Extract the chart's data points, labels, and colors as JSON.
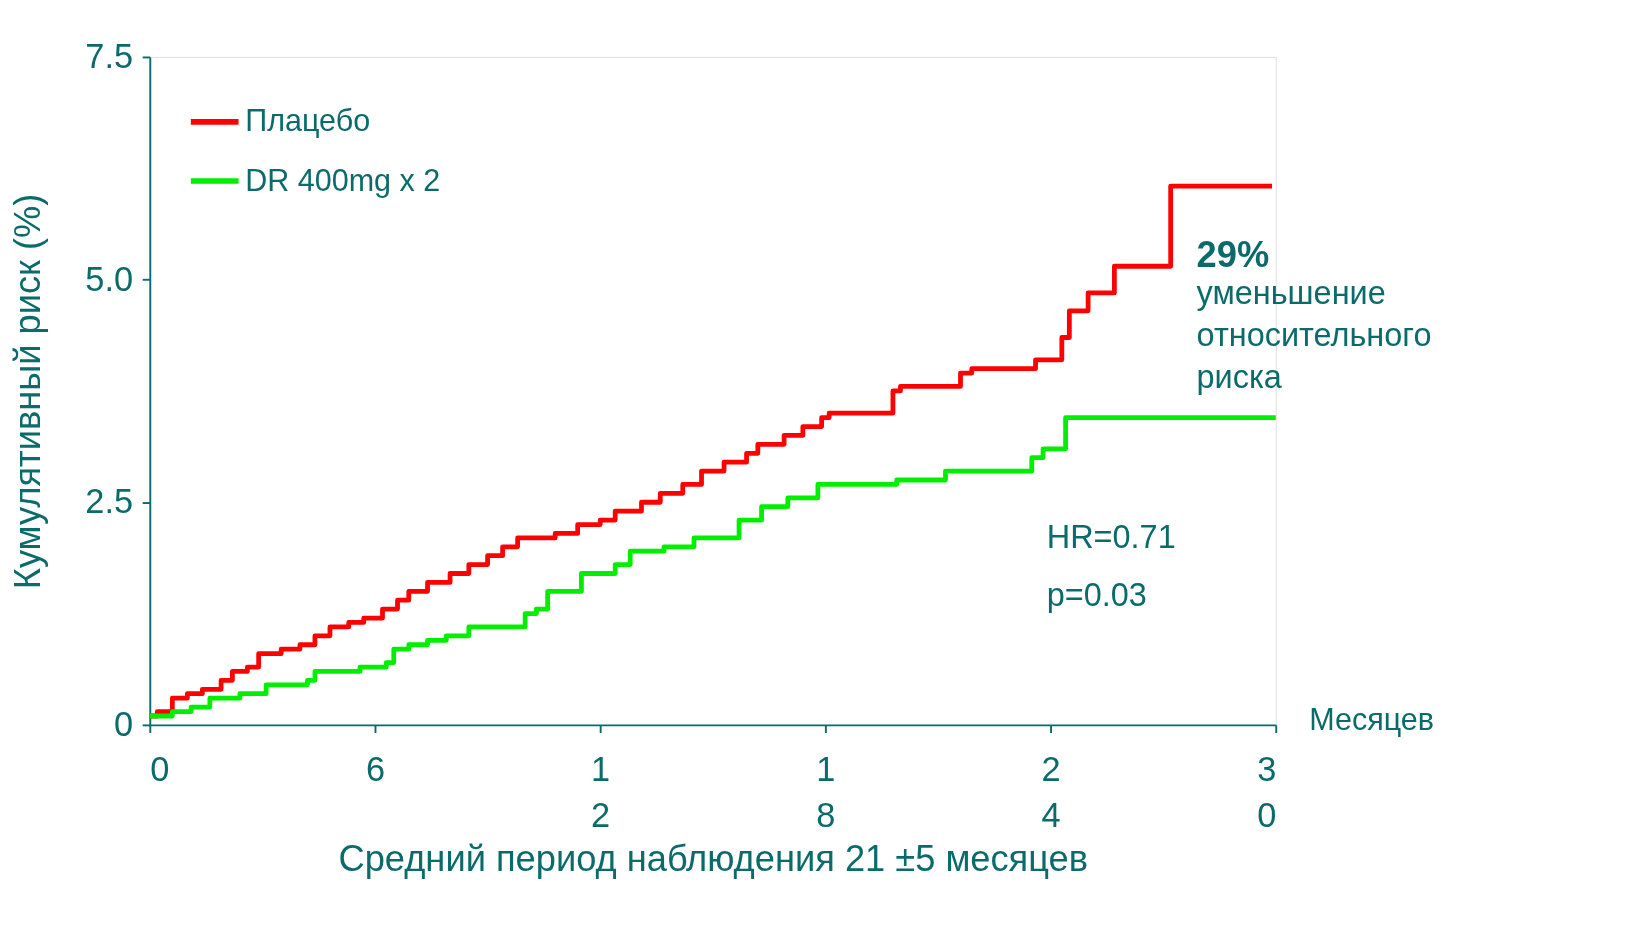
{
  "chart_data": {
    "type": "step",
    "xlabel": "Средний период наблюдения 21 ±5 месяцев",
    "ylabel": "Кумулятивный риск (%)",
    "xlim": [
      0,
      30
    ],
    "xticks": [
      0,
      6,
      12,
      18,
      24,
      30
    ],
    "ylim": [
      0,
      7.5
    ],
    "yticks": [
      0,
      2.5,
      {
        "value": 5,
        "label": "5.0"
      },
      7.5
    ],
    "grid": false,
    "legend": "top left",
    "line_style": "solid",
    "marker": "none",
    "series": [
      {
        "name": "Плацебо",
        "color": "#ff0000",
        "x": [
          0,
          0.2,
          0.6,
          1.0,
          1.4,
          1.9,
          2.2,
          2.6,
          2.9,
          3.5,
          4.0,
          4.4,
          4.8,
          5.3,
          5.7,
          6.2,
          6.6,
          6.9,
          7.4,
          8.0,
          8.5,
          9.0,
          9.4,
          9.8,
          10.8,
          11.4,
          12.0,
          12.4,
          13.1,
          13.6,
          14.2,
          14.7,
          15.3,
          15.9,
          16.2,
          16.9,
          17.4,
          17.9,
          18.1,
          19.8,
          20.0,
          21.6,
          21.9,
          23.6,
          24.3,
          24.5,
          25.0,
          25.7,
          27.2,
          29.9
        ],
        "values": [
          0.1,
          0.15,
          0.3,
          0.35,
          0.4,
          0.5,
          0.6,
          0.65,
          0.8,
          0.85,
          0.9,
          1.0,
          1.1,
          1.15,
          1.2,
          1.3,
          1.4,
          1.5,
          1.6,
          1.7,
          1.8,
          1.9,
          2.0,
          2.1,
          2.15,
          2.25,
          2.3,
          2.4,
          2.5,
          2.6,
          2.7,
          2.85,
          2.95,
          3.05,
          3.15,
          3.25,
          3.35,
          3.45,
          3.5,
          3.75,
          3.8,
          3.95,
          4.0,
          4.1,
          4.35,
          4.65,
          4.85,
          5.15,
          6.05,
          6.05
        ]
      },
      {
        "name": "DR 400mg x 2",
        "color": "#00ee00",
        "x": [
          0,
          0.6,
          1.1,
          1.6,
          2.4,
          3.1,
          4.2,
          4.4,
          5.6,
          6.3,
          6.5,
          6.9,
          7.4,
          7.9,
          8.5,
          10.0,
          10.3,
          10.6,
          11.5,
          12.4,
          12.8,
          13.7,
          14.5,
          15.7,
          16.3,
          17.0,
          17.8,
          19.9,
          21.2,
          23.5,
          23.8,
          24.4,
          30.0
        ],
        "values": [
          0.1,
          0.15,
          0.2,
          0.3,
          0.35,
          0.45,
          0.5,
          0.6,
          0.65,
          0.7,
          0.85,
          0.9,
          0.95,
          1.0,
          1.1,
          1.25,
          1.3,
          1.5,
          1.7,
          1.8,
          1.95,
          2.0,
          2.1,
          2.3,
          2.45,
          2.55,
          2.7,
          2.75,
          2.85,
          3.0,
          3.1,
          3.45,
          3.45
        ]
      }
    ],
    "annotations": [
      "29%",
      "уменьшение относительного риска",
      "HR=0.71",
      "p=0.03",
      "Месяцев"
    ]
  }
}
